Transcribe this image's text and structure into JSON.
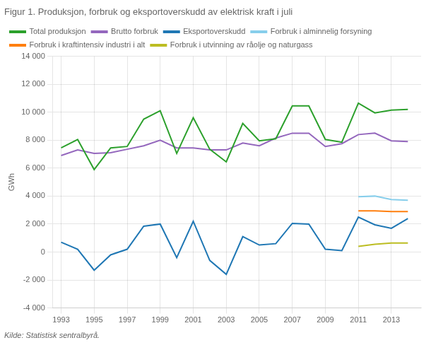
{
  "chart_data": {
    "type": "line",
    "title": "Figur 1. Produksjon, forbruk og eksportoverskudd av elektrisk kraft i juli",
    "ylabel": "GWh",
    "source": "Kilde: Statistisk sentralbyrå.",
    "x": [
      1993,
      1994,
      1995,
      1996,
      1997,
      1998,
      1999,
      2000,
      2001,
      2002,
      2003,
      2004,
      2005,
      2006,
      2007,
      2008,
      2009,
      2010,
      2011,
      2012,
      2013,
      2014
    ],
    "series": [
      {
        "name": "Total produksjon",
        "color": "#2ca02c",
        "values": [
          7450,
          8050,
          5900,
          7450,
          7550,
          9500,
          10100,
          7050,
          9600,
          7350,
          6450,
          9200,
          7950,
          8100,
          10450,
          10450,
          8050,
          7850,
          10650,
          9950,
          10150,
          10200
        ]
      },
      {
        "name": "Brutto forbruk",
        "color": "#9467bd",
        "values": [
          6900,
          7300,
          7050,
          7100,
          7350,
          7600,
          8000,
          7450,
          7450,
          7300,
          7300,
          7800,
          7600,
          8150,
          8500,
          8500,
          7550,
          7750,
          8400,
          8500,
          7950,
          7900
        ]
      },
      {
        "name": "Eksportoverskudd",
        "color": "#1f77b4",
        "values": [
          700,
          200,
          -1300,
          -200,
          200,
          1850,
          2000,
          -400,
          2200,
          -600,
          -1600,
          1100,
          500,
          600,
          2050,
          2000,
          200,
          100,
          2500,
          1950,
          1700,
          2400
        ]
      },
      {
        "name": "Forbruk i alminnelig forsyning",
        "color": "#87ceeb",
        "values": [
          null,
          null,
          null,
          null,
          null,
          null,
          null,
          null,
          null,
          null,
          null,
          null,
          null,
          null,
          null,
          null,
          null,
          null,
          3950,
          4000,
          3750,
          3700
        ]
      },
      {
        "name": "Forbruk i kraftintensiv industri i alt",
        "color": "#ff7f0e",
        "values": [
          null,
          null,
          null,
          null,
          null,
          null,
          null,
          null,
          null,
          null,
          null,
          null,
          null,
          null,
          null,
          null,
          null,
          null,
          2950,
          2950,
          2900,
          2900
        ]
      },
      {
        "name": "Forbruk i utvinning av råolje og naturgass",
        "color": "#bcbd22",
        "values": [
          null,
          null,
          null,
          null,
          null,
          null,
          null,
          null,
          null,
          null,
          null,
          null,
          null,
          null,
          null,
          null,
          null,
          null,
          400,
          550,
          650,
          650
        ]
      }
    ],
    "xlim": [
      1992.5,
      2014.8
    ],
    "xticks": [
      1993,
      1995,
      1997,
      1999,
      2001,
      2003,
      2005,
      2007,
      2009,
      2011,
      2013
    ],
    "ylim": [
      -4000,
      14000
    ],
    "yticks": [
      {
        "value": -4000,
        "label": "-4 000"
      },
      {
        "value": -2000,
        "label": "-2 000"
      },
      0,
      {
        "value": 2000,
        "label": "2 000"
      },
      {
        "value": 4000,
        "label": "4 000"
      },
      {
        "value": 6000,
        "label": "6 000"
      },
      {
        "value": 8000,
        "label": "8 000"
      },
      {
        "value": 10000,
        "label": "10 000"
      },
      {
        "value": 12000,
        "label": "12 000"
      },
      {
        "value": 14000,
        "label": "14 000"
      }
    ],
    "grid": true,
    "legend": "top"
  }
}
